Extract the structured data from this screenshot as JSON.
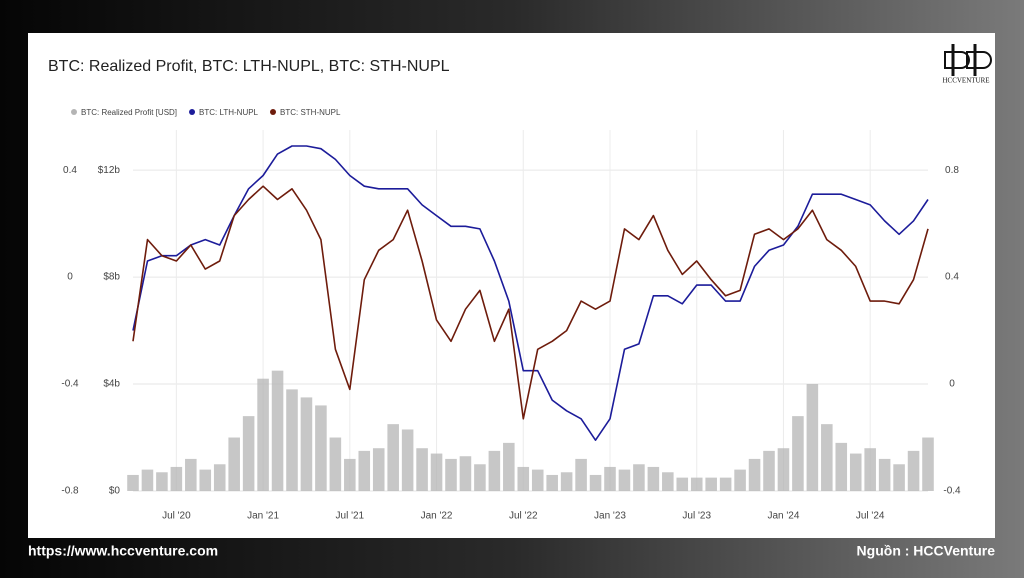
{
  "chart_data": {
    "type": "line",
    "title": "BTC: Realized Profit, BTC: LTH-NUPL, BTC: STH-NUPL",
    "x": [
      "2020-04",
      "2020-05",
      "2020-06",
      "2020-07",
      "2020-08",
      "2020-09",
      "2020-10",
      "2020-11",
      "2020-12",
      "2021-01",
      "2021-02",
      "2021-03",
      "2021-04",
      "2021-05",
      "2021-06",
      "2021-07",
      "2021-08",
      "2021-09",
      "2021-10",
      "2021-11",
      "2021-12",
      "2022-01",
      "2022-02",
      "2022-03",
      "2022-04",
      "2022-05",
      "2022-06",
      "2022-07",
      "2022-08",
      "2022-09",
      "2022-10",
      "2022-11",
      "2022-12",
      "2023-01",
      "2023-02",
      "2023-03",
      "2023-04",
      "2023-05",
      "2023-06",
      "2023-07",
      "2023-08",
      "2023-09",
      "2023-10",
      "2023-11",
      "2023-12",
      "2024-01",
      "2024-02",
      "2024-03",
      "2024-04",
      "2024-05",
      "2024-06",
      "2024-07",
      "2024-08",
      "2024-09",
      "2024-10",
      "2024-11"
    ],
    "xlim": [
      "2020-04",
      "2024-11"
    ],
    "xticks": [
      {
        "value": "2020-07",
        "label": "Jul '20"
      },
      {
        "value": "2021-01",
        "label": "Jan '21"
      },
      {
        "value": "2021-07",
        "label": "Jul '21"
      },
      {
        "value": "2022-01",
        "label": "Jan '22"
      },
      {
        "value": "2022-07",
        "label": "Jul '22"
      },
      {
        "value": "2023-01",
        "label": "Jan '23"
      },
      {
        "value": "2023-07",
        "label": "Jul '23"
      },
      {
        "value": "2024-01",
        "label": "Jan '24"
      },
      {
        "value": "2024-07",
        "label": "Jul '24"
      }
    ],
    "ylim": [
      0,
      13.5
    ],
    "yticks": [
      {
        "value": 0,
        "label": "$0"
      },
      {
        "value": 4,
        "label": "$4b"
      },
      {
        "value": 8,
        "label": "$8b"
      },
      {
        "value": 12,
        "label": "$12b"
      }
    ],
    "y2lim": [
      -0.4,
      0.95
    ],
    "y2ticks": [
      -0.4,
      0,
      0.4,
      0.8
    ],
    "y3lim": [
      -0.8,
      0.55
    ],
    "y3ticks": [
      -0.8,
      -0.4,
      0,
      0.4
    ],
    "grid": true,
    "series": [
      {
        "name": "BTC: Realized Profit [USD]",
        "color": "#b4b4b4",
        "axis": "y",
        "kind": "bar",
        "values": [
          0.6,
          0.8,
          0.7,
          0.9,
          1.2,
          0.8,
          1.0,
          2.0,
          2.8,
          4.2,
          4.5,
          3.8,
          3.5,
          3.2,
          2.0,
          1.2,
          1.5,
          1.6,
          2.5,
          2.3,
          1.6,
          1.4,
          1.2,
          1.3,
          1.0,
          1.5,
          1.8,
          0.9,
          0.8,
          0.6,
          0.7,
          1.2,
          0.6,
          0.9,
          0.8,
          1.0,
          0.9,
          0.7,
          0.5,
          0.5,
          0.5,
          0.5,
          0.8,
          1.2,
          1.5,
          1.6,
          2.8,
          4.0,
          2.5,
          1.8,
          1.4,
          1.6,
          1.2,
          1.0,
          1.5,
          2.0
        ]
      },
      {
        "name": "BTC: LTH-NUPL",
        "color": "#1c1c9a",
        "axis": "y2",
        "kind": "line",
        "values": [
          0.2,
          0.46,
          0.48,
          0.48,
          0.52,
          0.54,
          0.52,
          0.63,
          0.73,
          0.78,
          0.86,
          0.89,
          0.89,
          0.88,
          0.84,
          0.78,
          0.74,
          0.73,
          0.73,
          0.73,
          0.67,
          0.63,
          0.59,
          0.59,
          0.58,
          0.46,
          0.31,
          0.05,
          0.05,
          -0.06,
          -0.1,
          -0.13,
          -0.21,
          -0.13,
          0.13,
          0.15,
          0.33,
          0.33,
          0.3,
          0.37,
          0.37,
          0.31,
          0.31,
          0.44,
          0.5,
          0.52,
          0.59,
          0.71,
          0.71,
          0.71,
          0.69,
          0.67,
          0.61,
          0.56,
          0.61,
          0.69
        ]
      },
      {
        "name": "BTC: STH-NUPL",
        "color": "#6e1c0c",
        "axis": "y3",
        "kind": "line",
        "values": [
          -0.24,
          0.14,
          0.08,
          0.06,
          0.12,
          0.03,
          0.06,
          0.23,
          0.29,
          0.34,
          0.29,
          0.33,
          0.25,
          0.14,
          -0.27,
          -0.42,
          -0.01,
          0.1,
          0.14,
          0.25,
          0.06,
          -0.16,
          -0.24,
          -0.12,
          -0.05,
          -0.24,
          -0.12,
          -0.53,
          -0.27,
          -0.24,
          -0.2,
          -0.09,
          -0.12,
          -0.09,
          0.18,
          0.14,
          0.23,
          0.1,
          0.01,
          0.06,
          -0.01,
          -0.07,
          -0.05,
          0.16,
          0.18,
          0.14,
          0.18,
          0.25,
          0.14,
          0.1,
          0.04,
          -0.09,
          -0.09,
          -0.1,
          -0.01,
          0.18
        ]
      }
    ]
  },
  "logo": "HCCVENTURE",
  "footer": {
    "url": "https://www.hccventure.com",
    "source": "Nguồn : HCCVenture"
  }
}
